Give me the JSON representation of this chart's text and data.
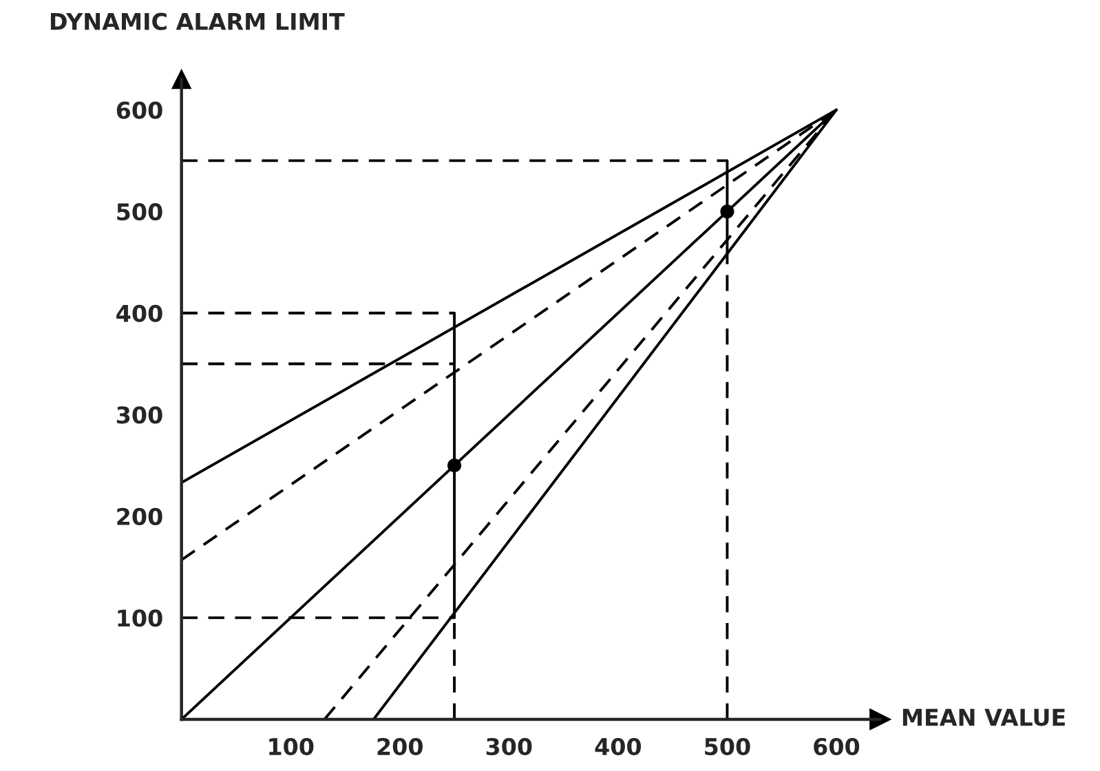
{
  "chart_data": {
    "type": "line",
    "xlabel": "MEAN VALUE",
    "ylabel": "DYNAMIC ALARM LIMIT",
    "xlim": [
      0,
      640
    ],
    "ylim": [
      0,
      630
    ],
    "xticks": [
      100,
      200,
      300,
      400,
      500,
      600
    ],
    "yticks": [
      100,
      200,
      300,
      400,
      500,
      600
    ],
    "grid": false,
    "legend": false,
    "marker": "none",
    "series": [
      {
        "color": "#000000",
        "line_style": "solid",
        "x": [
          0,
          600
        ],
        "values": [
          233,
          600
        ]
      },
      {
        "color": "#000000",
        "line_style": "dashed",
        "x": [
          0,
          600
        ],
        "values": [
          157,
          600
        ]
      },
      {
        "color": "#000000",
        "line_style": "solid",
        "x": [
          0,
          600
        ],
        "values": [
          0,
          600
        ]
      },
      {
        "color": "#000000",
        "line_style": "dashed",
        "x": [
          131,
          600
        ],
        "values": [
          0,
          600
        ]
      },
      {
        "color": "#000000",
        "line_style": "solid",
        "x": [
          176,
          600
        ],
        "values": [
          0,
          600
        ]
      },
      {
        "color": "#000000",
        "line_style": "dashed",
        "x": [
          0,
          500
        ],
        "values": [
          550,
          550
        ]
      },
      {
        "color": "#000000",
        "line_style": "dashed",
        "x": [
          0,
          250
        ],
        "values": [
          400,
          400
        ]
      },
      {
        "color": "#000000",
        "line_style": "dashed",
        "x": [
          0,
          250
        ],
        "values": [
          350,
          350
        ]
      },
      {
        "color": "#000000",
        "line_style": "dashed",
        "x": [
          0,
          250
        ],
        "values": [
          100,
          100
        ]
      },
      {
        "color": "#000000",
        "line_style": "dashed",
        "x": [
          250,
          250
        ],
        "values": [
          0,
          100
        ]
      },
      {
        "color": "#000000",
        "line_style": "solid",
        "x": [
          250,
          250
        ],
        "values": [
          100,
          400
        ]
      },
      {
        "color": "#000000",
        "line_style": "dashed",
        "x": [
          500,
          500
        ],
        "values": [
          0,
          458
        ]
      },
      {
        "color": "#000000",
        "line_style": "solid",
        "x": [
          500,
          500
        ],
        "values": [
          458,
          550
        ]
      },
      {
        "type": "scatter",
        "color": "#000000",
        "marker": "circle",
        "x": [
          250,
          500
        ],
        "values": [
          250,
          500
        ]
      }
    ]
  }
}
